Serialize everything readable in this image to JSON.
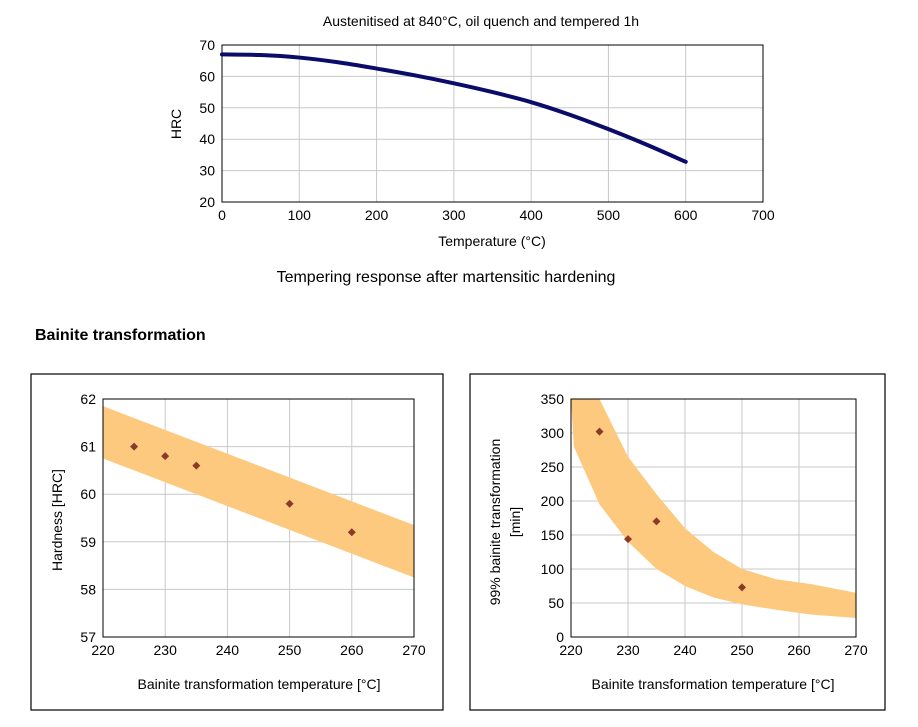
{
  "charts": {
    "tempering": {
      "title": "Austenitised at 840°C, oil quench and tempered 1h",
      "xlabel": "Temperature (°C)",
      "ylabel": "HRC",
      "caption": "Tempering response after martensitic hardening"
    },
    "hardness": {
      "xlabel": "Bainite transformation temperature [°C]",
      "ylabel": "Hardness [HRC]"
    },
    "duration": {
      "xlabel": "Bainite transformation temperature [°C]",
      "ylabel_line1": "99% bainite transformation",
      "ylabel_line2": "[min]"
    }
  },
  "section": {
    "heading": "Bainite transformation"
  },
  "colors": {
    "line": "#0b0b6a",
    "band": "#fdc97f",
    "marker": "#8b3a2a",
    "grid": "#c8c8c8"
  },
  "chart_data": [
    {
      "type": "line",
      "title": "Austenitised at 840°C, oil quench and tempered 1h",
      "xlabel": "Temperature (°C)",
      "ylabel": "HRC",
      "xlim": [
        0,
        700
      ],
      "ylim": [
        20,
        70
      ],
      "xticks": [
        0,
        100,
        200,
        300,
        400,
        500,
        600,
        700
      ],
      "yticks": [
        20,
        30,
        40,
        50,
        60,
        70
      ],
      "grid": true,
      "series": [
        {
          "x": [
            0,
            50,
            100,
            150,
            200,
            250,
            300,
            350,
            400,
            450,
            500,
            550,
            600
          ],
          "y": [
            67,
            66.8,
            66,
            64.5,
            62.5,
            60.3,
            57.8,
            55,
            51.8,
            47.8,
            43.2,
            38.2,
            32.8
          ]
        }
      ]
    },
    {
      "type": "scatter",
      "xlabel": "Bainite transformation temperature [°C]",
      "ylabel": "Hardness [HRC]",
      "xlim": [
        220,
        270
      ],
      "ylim": [
        57,
        62
      ],
      "xticks": [
        220,
        230,
        240,
        250,
        260,
        270
      ],
      "yticks": [
        57,
        58,
        59,
        60,
        61,
        62
      ],
      "grid": true,
      "band": {
        "x": [
          220,
          270
        ],
        "upper": [
          61.85,
          59.35
        ],
        "lower": [
          60.75,
          58.25
        ]
      },
      "series": [
        {
          "x": [
            225,
            230,
            235,
            250,
            260
          ],
          "y": [
            61,
            60.8,
            60.6,
            59.8,
            59.2
          ]
        }
      ]
    },
    {
      "type": "scatter",
      "xlabel": "Bainite transformation temperature [°C]",
      "ylabel": "99% bainite transformation [min]",
      "xlim": [
        220,
        270
      ],
      "ylim": [
        0,
        350
      ],
      "xticks": [
        220,
        230,
        240,
        250,
        260,
        270
      ],
      "yticks": [
        0,
        50,
        100,
        150,
        200,
        250,
        300,
        350
      ],
      "grid": true,
      "band": {
        "upper_x": [
          224,
          225,
          230,
          235,
          240,
          245,
          250,
          256,
          262,
          270
        ],
        "upper_y": [
          350,
          350,
          265,
          210,
          160,
          125,
          100,
          85,
          78,
          65
        ],
        "lower_x": [
          220,
          220.5,
          225,
          230,
          235,
          240,
          245,
          250,
          256,
          262,
          270
        ],
        "lower_y": [
          350,
          280,
          195,
          140,
          100,
          75,
          58,
          48,
          40,
          33,
          28
        ]
      },
      "series": [
        {
          "x": [
            225,
            230,
            235,
            250
          ],
          "y": [
            302,
            144,
            170,
            73
          ]
        }
      ]
    }
  ]
}
